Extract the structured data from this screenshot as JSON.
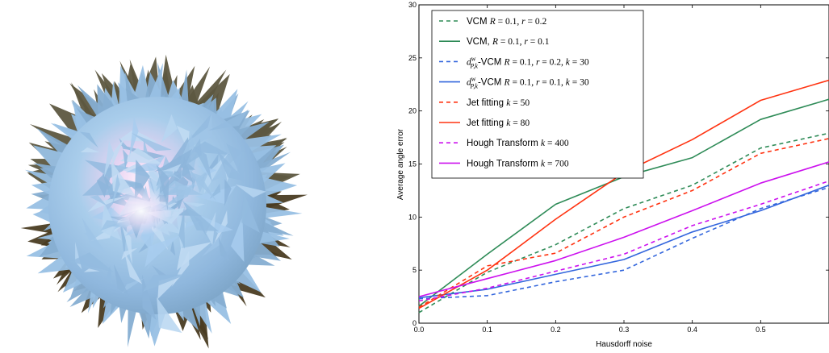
{
  "figure": {
    "left_panel": {
      "description_icon": "spiky-sphere-render"
    }
  },
  "chart_data": {
    "type": "line",
    "xlabel": "Hausdorff noise",
    "ylabel": "Average angle error",
    "xlim": [
      0.0,
      0.6
    ],
    "ylim": [
      0,
      30
    ],
    "xticks": [
      "0.0",
      "0.1",
      "0.2",
      "0.3",
      "0.4",
      "0.5"
    ],
    "yticks": [
      "0",
      "5",
      "10",
      "15",
      "20",
      "25",
      "30"
    ],
    "x": [
      0.0,
      0.1,
      0.2,
      0.3,
      0.4,
      0.5,
      0.6
    ],
    "legend_position": "top-left",
    "grid": false,
    "series": [
      {
        "name_prefix": "VCM ",
        "name_math": "R = 0.1, r = 0.2",
        "color": "#2e8b57",
        "dash": "dashed",
        "values": [
          1.0,
          4.8,
          7.4,
          10.8,
          13.0,
          16.5,
          17.9
        ]
      },
      {
        "name_prefix": "VCM, ",
        "name_math": "R = 0.1, r = 0.1",
        "color": "#2e8b57",
        "dash": "solid",
        "values": [
          1.6,
          6.5,
          11.2,
          13.8,
          15.6,
          19.2,
          21.1
        ]
      },
      {
        "name_prefix": "d_{P,k}^{w}-VCM ",
        "name_math": "R = 0.1, r = 0.2, k = 30",
        "color": "#3366dd",
        "dash": "dashed",
        "values": [
          2.3,
          2.6,
          3.9,
          5.0,
          8.0,
          10.8,
          12.8
        ]
      },
      {
        "name_prefix": "d_{P,k}^{w}-VCM ",
        "name_math": "R = 0.1, r = 0.1, k = 30",
        "color": "#3366dd",
        "dash": "solid",
        "values": [
          2.4,
          3.2,
          4.6,
          6.0,
          8.6,
          10.6,
          13.0
        ]
      },
      {
        "name_prefix": "Jet fitting ",
        "name_math": "k = 50",
        "color": "#ff3311",
        "dash": "dashed",
        "values": [
          1.5,
          5.4,
          6.6,
          10.0,
          12.5,
          16.0,
          17.4
        ]
      },
      {
        "name_prefix": "Jet fitting ",
        "name_math": "k = 80",
        "color": "#ff3311",
        "dash": "solid",
        "values": [
          1.4,
          5.0,
          9.8,
          14.2,
          17.3,
          21.0,
          22.9
        ]
      },
      {
        "name_prefix": "Hough Transform ",
        "name_math": "k = 400",
        "color": "#cc11ee",
        "dash": "dashed",
        "values": [
          2.1,
          3.3,
          4.9,
          6.5,
          9.2,
          11.2,
          13.4
        ]
      },
      {
        "name_prefix": "Hough Transform ",
        "name_math": "k = 700",
        "color": "#cc11ee",
        "dash": "solid",
        "values": [
          2.5,
          4.2,
          5.9,
          8.1,
          10.6,
          13.2,
          15.2
        ]
      }
    ]
  }
}
